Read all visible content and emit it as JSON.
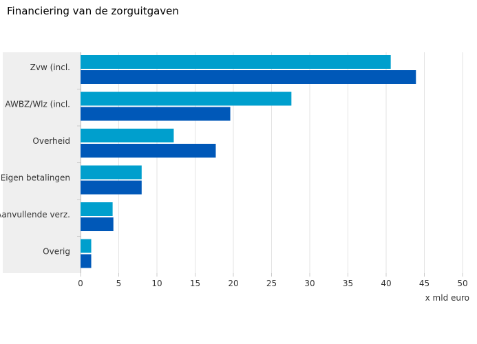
{
  "chart_data": {
    "type": "bar",
    "orientation": "horizontal",
    "title": "Financiering van de zorguitgaven",
    "xlabel": "x mld euro",
    "ylabel": "",
    "xlim": [
      0,
      50
    ],
    "x_ticks": [
      0,
      5,
      10,
      15,
      20,
      25,
      30,
      35,
      40,
      45,
      50
    ],
    "categories": [
      "Zvw (incl.",
      "AWBZ/Wlz (incl.",
      "Overheid",
      "Eigen betalingen",
      "Aanvullende verz.",
      "Overig"
    ],
    "series": [
      {
        "values": [
          40.6,
          27.6,
          12.2,
          8.0,
          4.2,
          1.4
        ],
        "color": "#009fcd"
      },
      {
        "values": [
          43.9,
          19.6,
          17.7,
          8.0,
          4.3,
          1.4
        ],
        "color": "#0058b8"
      }
    ],
    "grid": true,
    "legend": "none"
  }
}
